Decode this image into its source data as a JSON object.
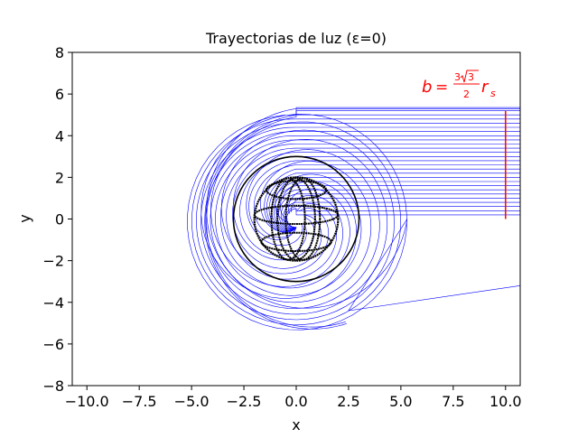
{
  "chart_data": {
    "type": "line",
    "title": "Trayectorias de luz (ε=0)",
    "xlabel": "x",
    "ylabel": "y",
    "xlim": [
      -10.7,
      10.7
    ],
    "ylim": [
      -8,
      8
    ],
    "grid": false,
    "x_ticks": [
      -10.0,
      -7.5,
      -5.0,
      -2.5,
      0.0,
      2.5,
      5.0,
      7.5,
      10.0
    ],
    "x_tick_labels": [
      "−10.0",
      "−7.5",
      "−5.0",
      "−2.5",
      "0.0",
      "2.5",
      "5.0",
      "7.5",
      "10.0"
    ],
    "y_ticks": [
      -8,
      -6,
      -4,
      -2,
      0,
      2,
      4,
      6,
      8
    ],
    "y_tick_labels": [
      "−8",
      "−6",
      "−4",
      "−2",
      "0",
      "2",
      "4",
      "6",
      "8"
    ],
    "annotation": {
      "text_b": "b",
      "text_eq": "=",
      "text_num3a": "3",
      "text_num3b": "3",
      "text_den": "2",
      "text_r": "r",
      "text_sub": "s",
      "color": "#ff0000",
      "x": 6.0,
      "y": 6.0
    },
    "impact_marker": {
      "x": 10.0,
      "y0": 0.0,
      "y1": 5.196,
      "color": "#ff0000"
    },
    "photon_sphere": {
      "radius": 3.0,
      "color": "#000000"
    },
    "horizon_globe": {
      "radius": 2.0,
      "color": "#000000"
    },
    "ray_color": "#0000ff",
    "ray_impact_parameters": [
      0.2,
      0.4,
      0.6,
      0.8,
      1.0,
      1.2,
      1.4,
      1.6,
      1.8,
      2.0,
      2.2,
      2.4,
      2.6,
      2.8,
      3.0,
      3.2,
      3.4,
      3.6,
      3.8,
      4.0,
      4.2,
      4.4,
      4.6,
      4.8,
      5.0,
      5.2,
      5.3
    ],
    "escaping_ray": {
      "start": [
        10.7,
        5.35
      ],
      "end": [
        10.7,
        -3.2
      ],
      "closest_approach": [
        2.5,
        -4.4
      ]
    }
  }
}
